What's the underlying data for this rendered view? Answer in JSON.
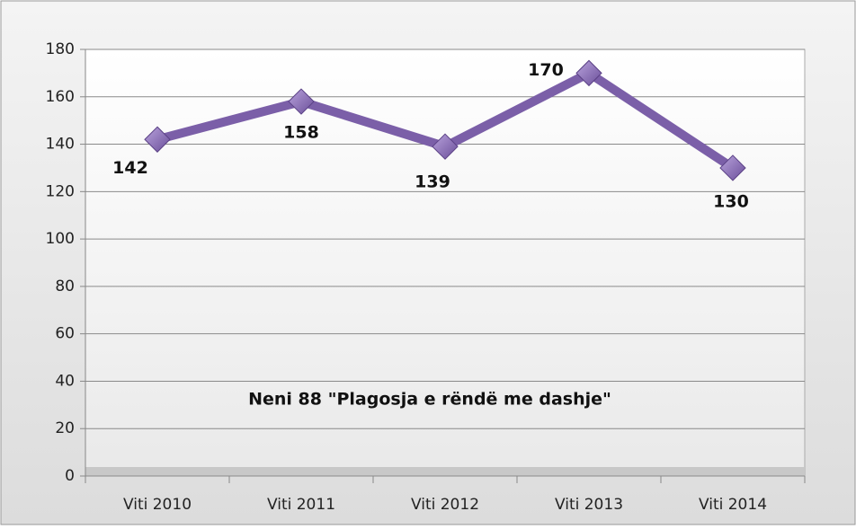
{
  "chart_data": {
    "type": "line",
    "categories": [
      "Viti 2010",
      "Viti 2011",
      "Viti 2012",
      "Viti 2013",
      "Viti 2014"
    ],
    "series": [
      {
        "name": "Neni 88",
        "color": "#7b5fa8",
        "values": [
          142,
          158,
          139,
          170,
          130
        ]
      }
    ],
    "annotation": "Neni  88 \"Plagosja e rëndë me dashje\"",
    "ylim": [
      0,
      180
    ],
    "yticks": [
      0,
      20,
      40,
      60,
      80,
      100,
      120,
      140,
      160,
      180
    ],
    "grid": true
  }
}
